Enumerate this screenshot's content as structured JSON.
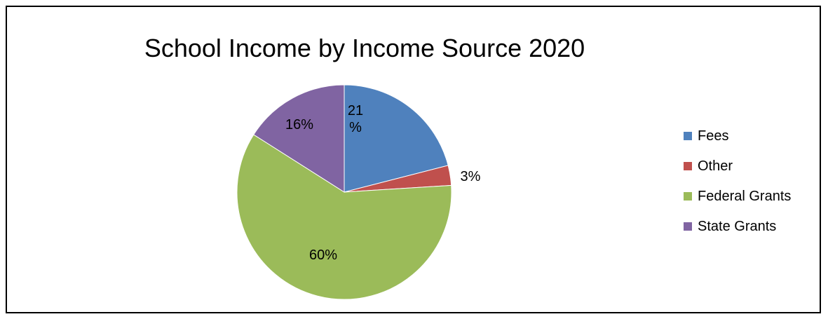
{
  "chart_data": {
    "type": "pie",
    "title": "School Income by Income Source 2020",
    "categories": [
      "Fees",
      "Other",
      "Federal Grants",
      "State Grants"
    ],
    "values": [
      21,
      3,
      60,
      16
    ],
    "labels": [
      "21 %",
      "3%",
      "60%",
      "16%"
    ],
    "colors": [
      "#4F81BD",
      "#C0504D",
      "#9BBB59",
      "#8064A2"
    ],
    "legend_position": "right"
  }
}
